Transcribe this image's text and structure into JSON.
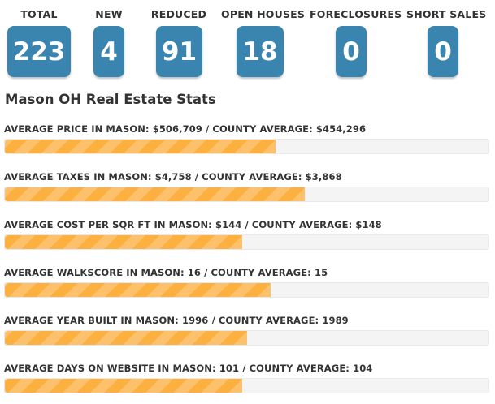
{
  "counters": [
    {
      "label": "TOTAL",
      "value": "223"
    },
    {
      "label": "NEW",
      "value": "4"
    },
    {
      "label": "REDUCED",
      "value": "91"
    },
    {
      "label": "OPEN HOUSES",
      "value": "18"
    },
    {
      "label": "FORECLOSURES",
      "value": "0"
    },
    {
      "label": "SHORT SALES",
      "value": "0"
    }
  ],
  "section_title": "Mason OH Real Estate Stats",
  "colors": {
    "counter_box": "#3a85b0",
    "bar_fill": "#fbb040",
    "bar_track": "#f4f4f4"
  },
  "stats": [
    {
      "label": "AVERAGE PRICE IN MASON: $506,709 / COUNTY AVERAGE: $454,296",
      "fill_fraction": 0.56
    },
    {
      "label": "AVERAGE TAXES IN MASON: $4,758 / COUNTY AVERAGE: $3,868",
      "fill_fraction": 0.62
    },
    {
      "label": "AVERAGE COST PER SQR FT IN MASON: $144 / COUNTY AVERAGE: $148",
      "fill_fraction": 0.49
    },
    {
      "label": "AVERAGE WALKSCORE IN MASON: 16 / COUNTY AVERAGE: 15",
      "fill_fraction": 0.55
    },
    {
      "label": "AVERAGE YEAR BUILT IN MASON: 1996 / COUNTY AVERAGE: 1989",
      "fill_fraction": 0.5
    },
    {
      "label": "AVERAGE DAYS ON WEBSITE IN MASON: 101 / COUNTY AVERAGE: 104",
      "fill_fraction": 0.49
    }
  ]
}
